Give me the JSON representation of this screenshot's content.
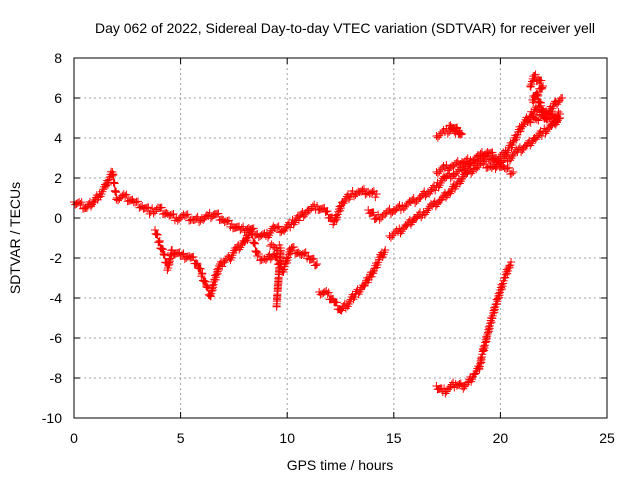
{
  "chart_data": {
    "type": "scatter",
    "title": "Day 062 of 2022, Sidereal Day-to-day VTEC variation (SDTVAR) for receiver yell",
    "xlabel": "GPS time / hours",
    "ylabel": "SDTVAR / TECUs",
    "xlim": [
      0,
      25
    ],
    "ylim": [
      -10,
      8
    ],
    "xticks": [
      "0",
      "5",
      "10",
      "15",
      "20",
      "25"
    ],
    "yticks": [
      "-10",
      "-8",
      "-6",
      "-4",
      "-2",
      "0",
      "2",
      "4",
      "6",
      "8"
    ],
    "grid": true,
    "marker": "plus",
    "color": "#ff0000",
    "series": [
      {
        "points": [
          [
            0,
            0.8
          ],
          [
            0.3,
            0.7
          ],
          [
            0.6,
            0.5
          ],
          [
            0.9,
            0.8
          ],
          [
            1.2,
            1.2
          ],
          [
            1.5,
            1.6
          ],
          [
            1.8,
            2.3
          ],
          [
            2.0,
            1.0
          ],
          [
            2.4,
            1.1
          ],
          [
            2.8,
            0.8
          ],
          [
            3.2,
            0.6
          ],
          [
            3.6,
            0.3
          ],
          [
            4.0,
            0.5
          ],
          [
            4.4,
            0.2
          ],
          [
            4.8,
            0.0
          ],
          [
            5.2,
            0.1
          ],
          [
            5.6,
            -0.1
          ],
          [
            6.0,
            0.0
          ],
          [
            6.3,
            0.1
          ],
          [
            6.6,
            0.2
          ],
          [
            7.0,
            -0.1
          ],
          [
            7.4,
            -0.3
          ],
          [
            7.8,
            -0.6
          ],
          [
            8.2,
            -0.5
          ],
          [
            8.6,
            -0.8
          ],
          [
            9.0,
            -0.9
          ],
          [
            9.4,
            -0.5
          ],
          [
            9.8,
            -0.6
          ],
          [
            10.2,
            -0.3
          ],
          [
            10.6,
            0.1
          ],
          [
            11.0,
            0.4
          ],
          [
            11.4,
            0.6
          ],
          [
            11.8,
            0.3
          ],
          [
            12.2,
            -0.2
          ],
          [
            12.6,
            0.8
          ],
          [
            13.0,
            1.2
          ],
          [
            13.4,
            1.3
          ],
          [
            13.8,
            1.3
          ],
          [
            14.2,
            1.2
          ]
        ]
      },
      {
        "points": [
          [
            3.8,
            -0.6
          ],
          [
            4.0,
            -1.2
          ],
          [
            4.2,
            -1.8
          ],
          [
            4.4,
            -2.5
          ],
          [
            4.6,
            -1.6
          ],
          [
            5.0,
            -1.9
          ],
          [
            5.4,
            -1.9
          ],
          [
            5.8,
            -2.3
          ],
          [
            6.0,
            -2.8
          ],
          [
            6.2,
            -3.4
          ],
          [
            6.4,
            -3.9
          ],
          [
            6.6,
            -3.1
          ],
          [
            6.8,
            -2.4
          ],
          [
            7.0,
            -2.2
          ],
          [
            7.3,
            -2.0
          ],
          [
            7.6,
            -1.6
          ],
          [
            8.0,
            -1.2
          ],
          [
            8.3,
            -0.6
          ],
          [
            8.6,
            -1.9
          ],
          [
            9.0,
            -2.1
          ],
          [
            9.4,
            -1.8
          ],
          [
            9.8,
            -2.6
          ],
          [
            10.2,
            -1.5
          ],
          [
            10.6,
            -1.8
          ],
          [
            11.0,
            -1.9
          ],
          [
            11.4,
            -2.3
          ]
        ]
      },
      {
        "points": [
          [
            11.5,
            -3.7
          ],
          [
            11.9,
            -3.8
          ],
          [
            12.2,
            -4.2
          ],
          [
            12.5,
            -4.6
          ],
          [
            12.8,
            -4.3
          ],
          [
            13.2,
            -3.8
          ],
          [
            13.6,
            -3.4
          ],
          [
            14.0,
            -2.7
          ],
          [
            14.4,
            -1.9
          ],
          [
            14.6,
            -1.6
          ]
        ]
      },
      {
        "points": [
          [
            9.5,
            -4.4
          ],
          [
            9.7,
            -1.5
          ],
          [
            9.2,
            -1.4
          ]
        ]
      },
      {
        "points": [
          [
            13.8,
            0.4
          ],
          [
            14.2,
            0.0
          ],
          [
            14.6,
            0.2
          ],
          [
            15.0,
            0.4
          ],
          [
            15.4,
            0.6
          ],
          [
            15.8,
            0.8
          ],
          [
            16.2,
            1.0
          ],
          [
            16.6,
            1.3
          ],
          [
            17.0,
            1.6
          ],
          [
            17.4,
            2.0
          ],
          [
            17.8,
            2.2
          ],
          [
            18.2,
            2.4
          ],
          [
            18.6,
            2.7
          ],
          [
            19.0,
            2.9
          ],
          [
            19.4,
            3.1
          ],
          [
            19.8,
            2.8
          ],
          [
            20.2,
            2.5
          ],
          [
            20.6,
            2.3
          ]
        ]
      },
      {
        "points": [
          [
            14.8,
            -0.9
          ],
          [
            15.2,
            -0.7
          ],
          [
            15.6,
            -0.4
          ],
          [
            16.0,
            0.0
          ],
          [
            16.4,
            0.3
          ],
          [
            16.8,
            0.6
          ],
          [
            17.2,
            0.9
          ],
          [
            17.6,
            1.3
          ],
          [
            18.0,
            1.8
          ],
          [
            18.4,
            2.2
          ],
          [
            18.8,
            2.5
          ],
          [
            19.2,
            2.7
          ],
          [
            19.6,
            2.5
          ],
          [
            20.0,
            2.8
          ],
          [
            20.4,
            3.0
          ],
          [
            20.8,
            3.3
          ],
          [
            21.2,
            3.6
          ],
          [
            21.6,
            4.0
          ],
          [
            22.0,
            4.3
          ],
          [
            22.4,
            4.6
          ],
          [
            22.8,
            5.0
          ]
        ]
      },
      {
        "points": [
          [
            17.0,
            4.1
          ],
          [
            17.4,
            4.3
          ],
          [
            17.8,
            4.5
          ],
          [
            18.2,
            4.2
          ],
          [
            17.6,
            4.6
          ]
        ]
      },
      {
        "points": [
          [
            17.0,
            2.3
          ],
          [
            17.4,
            2.5
          ],
          [
            17.8,
            2.6
          ],
          [
            18.2,
            2.8
          ],
          [
            18.6,
            2.9
          ],
          [
            19.0,
            3.1
          ],
          [
            19.4,
            3.3
          ],
          [
            19.8,
            3.0
          ],
          [
            20.2,
            3.2
          ],
          [
            20.6,
            3.8
          ],
          [
            21.0,
            4.6
          ],
          [
            21.4,
            5.1
          ],
          [
            21.8,
            5.6
          ],
          [
            22.2,
            5.2
          ],
          [
            22.6,
            5.8
          ],
          [
            22.9,
            6.0
          ]
        ]
      },
      {
        "points": [
          [
            21.4,
            6.6
          ],
          [
            21.6,
            7.1
          ],
          [
            21.8,
            6.9
          ],
          [
            22.0,
            6.6
          ],
          [
            21.5,
            5.9
          ],
          [
            21.7,
            6.2
          ],
          [
            22.1,
            5.0
          ],
          [
            22.5,
            4.8
          ],
          [
            22.8,
            5.2
          ],
          [
            21.2,
            4.9
          ]
        ]
      },
      {
        "points": [
          [
            17.0,
            -8.4
          ],
          [
            17.3,
            -8.7
          ],
          [
            17.6,
            -8.5
          ],
          [
            17.9,
            -8.3
          ],
          [
            18.2,
            -8.4
          ],
          [
            18.5,
            -8.2
          ],
          [
            18.8,
            -7.8
          ],
          [
            19.0,
            -7.5
          ],
          [
            19.2,
            -6.6
          ],
          [
            19.4,
            -5.8
          ],
          [
            19.6,
            -5.0
          ],
          [
            19.8,
            -4.3
          ],
          [
            20.0,
            -3.6
          ],
          [
            20.2,
            -3.0
          ],
          [
            20.4,
            -2.4
          ],
          [
            20.5,
            -2.2
          ]
        ]
      }
    ]
  }
}
